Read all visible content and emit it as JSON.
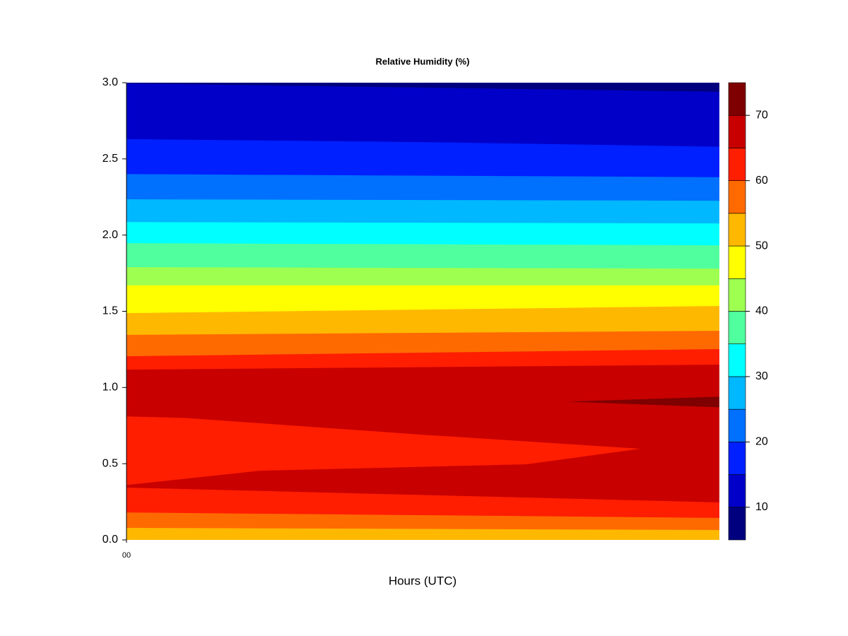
{
  "chart_data": {
    "type": "contour",
    "title": "Relative Humidity (%)",
    "xlabel": "Hours (UTC)",
    "xlim": [
      0,
      24
    ],
    "xticks": [
      {
        "value": 0,
        "label": "00"
      }
    ],
    "ylim": [
      0,
      3
    ],
    "yticks": [
      {
        "value": 0,
        "label": "0.0"
      },
      {
        "value": 0.5,
        "label": "0.5"
      },
      {
        "value": 1,
        "label": "1.0"
      },
      {
        "value": 1.5,
        "label": "1.5"
      },
      {
        "value": 2,
        "label": "2.0"
      },
      {
        "value": 2.5,
        "label": "2.5"
      },
      {
        "value": 3,
        "label": "3.0"
      }
    ],
    "bins": [
      5,
      10,
      15,
      20,
      25,
      30,
      35,
      40,
      45,
      50,
      55,
      60,
      65,
      70,
      75
    ],
    "colors": [
      "#00007f",
      "#0000c8",
      "#0020ff",
      "#0070ff",
      "#00b8ff",
      "#00ffff",
      "#50ff9e",
      "#9eff50",
      "#ffff00",
      "#ffb800",
      "#ff6a00",
      "#ff1e00",
      "#c80000",
      "#7f0000"
    ],
    "colorbar_ticks": [
      10,
      20,
      30,
      40,
      50,
      60,
      70
    ],
    "regions": [
      {
        "level": 5,
        "points": [
          [
            0,
            3
          ],
          [
            24,
            3
          ],
          [
            24,
            0
          ],
          [
            0,
            0
          ]
        ]
      },
      {
        "level": 10,
        "points": [
          [
            0,
            2.995
          ],
          [
            24,
            2.94
          ],
          [
            24,
            0
          ],
          [
            0,
            0
          ]
        ]
      },
      {
        "level": 15,
        "points": [
          [
            0,
            2.63
          ],
          [
            12,
            2.61
          ],
          [
            24,
            2.58
          ],
          [
            24,
            0
          ],
          [
            0,
            0
          ]
        ]
      },
      {
        "level": 20,
        "points": [
          [
            0,
            2.4
          ],
          [
            24,
            2.38
          ],
          [
            24,
            0
          ],
          [
            0,
            0
          ]
        ]
      },
      {
        "level": 25,
        "points": [
          [
            0,
            2.235
          ],
          [
            24,
            2.225
          ],
          [
            24,
            0
          ],
          [
            0,
            0
          ]
        ]
      },
      {
        "level": 30,
        "points": [
          [
            0,
            2.085
          ],
          [
            24,
            2.077
          ],
          [
            24,
            0
          ],
          [
            0,
            0
          ]
        ]
      },
      {
        "level": 35,
        "points": [
          [
            0,
            1.947
          ],
          [
            24,
            1.933
          ],
          [
            24,
            0
          ],
          [
            0,
            0
          ]
        ]
      },
      {
        "level": 40,
        "points": [
          [
            0,
            1.79
          ],
          [
            24,
            1.78
          ],
          [
            24,
            0
          ],
          [
            0,
            0
          ]
        ]
      },
      {
        "level": 45,
        "points": [
          [
            0,
            1.67
          ],
          [
            24,
            1.67
          ],
          [
            24,
            0
          ],
          [
            0,
            0
          ]
        ]
      },
      {
        "level": 50,
        "points": [
          [
            0,
            1.488
          ],
          [
            24,
            1.535
          ],
          [
            24,
            0
          ],
          [
            0,
            0
          ]
        ]
      },
      {
        "level": 55,
        "points": [
          [
            0,
            1.345
          ],
          [
            24,
            1.372
          ],
          [
            24,
            0
          ],
          [
            0,
            0
          ]
        ]
      },
      {
        "level": 60,
        "points": [
          [
            0,
            1.205
          ],
          [
            24,
            1.252
          ],
          [
            24,
            0
          ],
          [
            0,
            0
          ]
        ]
      },
      {
        "level": 65,
        "points": [
          [
            0,
            1.117
          ],
          [
            24,
            1.15
          ],
          [
            24,
            0
          ],
          [
            0,
            0
          ]
        ]
      },
      {
        "level": 60,
        "points": [
          [
            0,
            0.81
          ],
          [
            2.4,
            0.8
          ],
          [
            12,
            0.69
          ],
          [
            20.8,
            0.598
          ],
          [
            16.2,
            0.496
          ],
          [
            5.4,
            0.454
          ],
          [
            0,
            0.36
          ]
        ]
      },
      {
        "level": 70,
        "points": [
          [
            17.8,
            0.907
          ],
          [
            24,
            0.94
          ],
          [
            24,
            0.87
          ]
        ]
      },
      {
        "level": 60,
        "points": [
          [
            0,
            0.343
          ],
          [
            24,
            0.246
          ],
          [
            24,
            0
          ],
          [
            0,
            0
          ]
        ]
      },
      {
        "level": 55,
        "points": [
          [
            0,
            0.18
          ],
          [
            24,
            0.144
          ],
          [
            24,
            0
          ],
          [
            0,
            0
          ]
        ]
      },
      {
        "level": 50,
        "points": [
          [
            0,
            0.079
          ],
          [
            24,
            0.065
          ],
          [
            24,
            0
          ],
          [
            0,
            0
          ]
        ]
      }
    ]
  }
}
